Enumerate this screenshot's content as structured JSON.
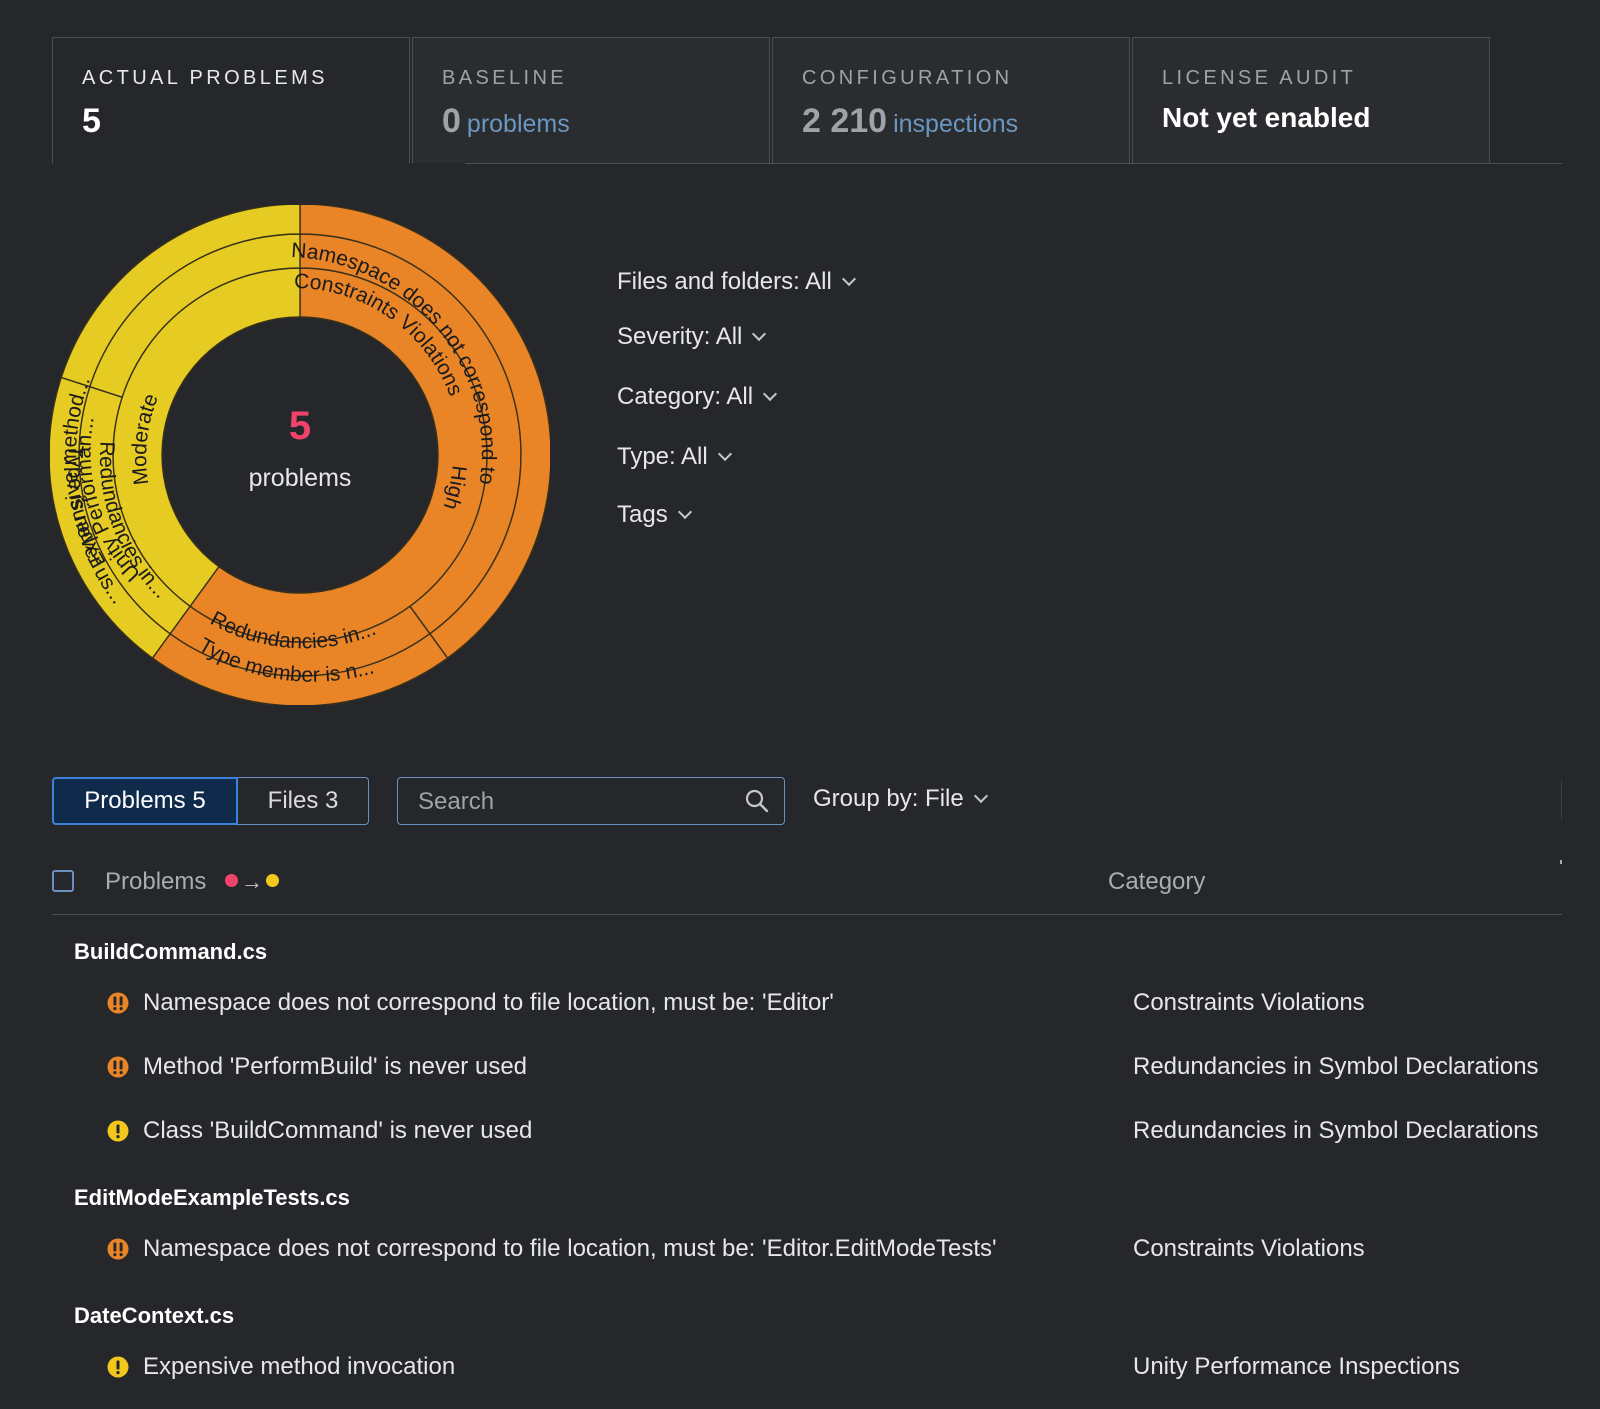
{
  "colors": {
    "high": "#e98527",
    "moderate": "#e6cc22",
    "accent": "#3c82d8",
    "count": "#f0436b"
  },
  "stat_tabs": [
    {
      "label": "ACTUAL PROBLEMS",
      "value": "5",
      "unit": ""
    },
    {
      "label": "BASELINE",
      "value": "0",
      "unit": "problems"
    },
    {
      "label": "CONFIGURATION",
      "value": "2 210",
      "unit": "inspections"
    },
    {
      "label": "LICENSE AUDIT",
      "value": "Not yet enabled",
      "unit": ""
    }
  ],
  "sunburst": {
    "center_count": "5",
    "center_label": "problems",
    "rings": {
      "severity": [
        {
          "label": "High",
          "count": 3,
          "color": "#e98527"
        },
        {
          "label": "Moderate",
          "count": 2,
          "color": "#e6cc22"
        }
      ],
      "category": [
        {
          "label": "Constraints Violations",
          "count": 2,
          "color": "#e98527"
        },
        {
          "label": "Redundancies in...",
          "count": 1,
          "color": "#e98527"
        },
        {
          "label": "Redundancies in...",
          "count": 1,
          "color": "#e6cc22"
        },
        {
          "label": "Unity Performan...",
          "count": 1,
          "color": "#e6cc22"
        }
      ],
      "type": [
        {
          "label": "Namespace does not correspond to ...",
          "count": 2,
          "color": "#e98527"
        },
        {
          "label": "Type member is n...",
          "count": 1,
          "color": "#e98527"
        },
        {
          "label": "Type is never us...",
          "count": 1,
          "color": "#e6cc22"
        },
        {
          "label": "Expensive method...",
          "count": 1,
          "color": "#e6cc22"
        }
      ]
    }
  },
  "filters": [
    {
      "label": "Files and folders: All"
    },
    {
      "label": "Severity: All"
    },
    {
      "label": "Category: All"
    },
    {
      "label": "Type: All"
    },
    {
      "label": "Tags"
    }
  ],
  "view_toggle": {
    "problems": "Problems 5",
    "files": "Files 3"
  },
  "search": {
    "placeholder": "Search",
    "value": ""
  },
  "group_by": "Group by: File",
  "table": {
    "col_problems": "Problems",
    "sort_arrow": "→",
    "col_category": "Category",
    "groups": [
      {
        "file": "BuildCommand.cs",
        "rows": [
          {
            "severity": "high",
            "text": "Namespace does not correspond to file location, must be: 'Editor'",
            "category": "Constraints Violations"
          },
          {
            "severity": "high",
            "text": "Method 'PerformBuild' is never used",
            "category": "Redundancies in Symbol Declarations"
          },
          {
            "severity": "moderate",
            "text": "Class 'BuildCommand' is never used",
            "category": "Redundancies in Symbol Declarations"
          }
        ]
      },
      {
        "file": "EditModeExampleTests.cs",
        "rows": [
          {
            "severity": "high",
            "text": "Namespace does not correspond to file location, must be: 'Editor.EditModeTests'",
            "category": "Constraints Violations"
          }
        ]
      },
      {
        "file": "DateContext.cs",
        "rows": [
          {
            "severity": "moderate",
            "text": "Expensive method invocation",
            "category": "Unity Performance Inspections"
          }
        ]
      }
    ]
  }
}
